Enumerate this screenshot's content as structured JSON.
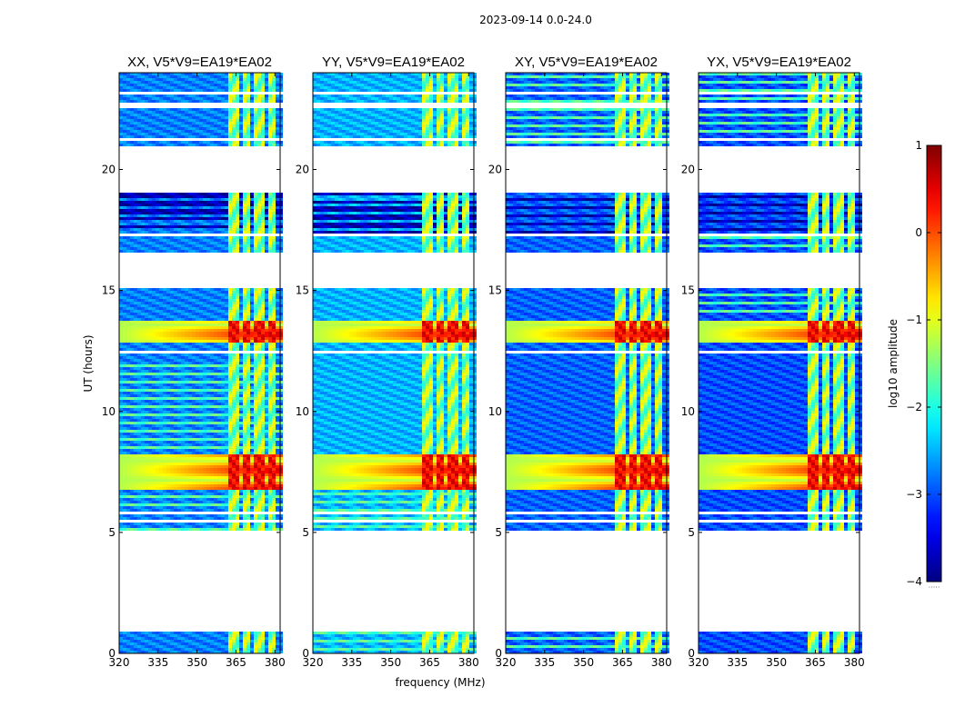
{
  "chart_data": {
    "type": "heatmap",
    "suptitle": "2023-09-14 0.0-24.0",
    "xlabel": "frequency (MHz)",
    "ylabel": "UT (hours)",
    "xlim": [
      320,
      382
    ],
    "ylim": [
      0,
      24
    ],
    "xticks": [
      "320",
      "335",
      "350",
      "365",
      "380"
    ],
    "yticks": [
      "0",
      "5",
      "10",
      "15",
      "20"
    ],
    "panels": [
      {
        "name": "XX",
        "title": "XX, V5*V9=EA19*EA02",
        "base_level": 0.25
      },
      {
        "name": "YY",
        "title": "YY, V5*V9=EA19*EA02",
        "base_level": 0.3
      },
      {
        "name": "XY",
        "title": "XY, V5*V9=EA19*EA02",
        "base_level": 0.22
      },
      {
        "name": "YX",
        "title": "YX, V5*V9=EA19*EA02",
        "base_level": 0.2
      }
    ],
    "colorbar": {
      "label": "log10 amplitude",
      "range": [
        -4,
        1
      ],
      "ticks": [
        "1",
        "0",
        "−1",
        "−2",
        "−3",
        "−4"
      ],
      "colormap": "jet",
      "extension_label": "·····"
    },
    "data_gaps_hours": [
      [
        0.85,
        5.1
      ],
      [
        5.45,
        5.55
      ],
      [
        5.75,
        5.85
      ],
      [
        9.0,
        9.05
      ],
      [
        12.15,
        12.2
      ],
      [
        12.45,
        12.55
      ],
      [
        15.1,
        16.4
      ],
      [
        16.5,
        16.55
      ],
      [
        16.85,
        16.95
      ],
      [
        17.2,
        17.35
      ],
      [
        19.0,
        21.0
      ],
      [
        21.15,
        21.3
      ],
      [
        22.5,
        22.75
      ],
      [
        23.15,
        23.25
      ]
    ],
    "rfi_channels_mhz": [
      [
        362,
        366
      ],
      [
        367,
        371
      ],
      [
        372,
        376
      ],
      [
        377,
        380
      ]
    ],
    "strong_interference_hours": [
      [
        6.75,
        8.25
      ],
      [
        12.8,
        13.7
      ]
    ]
  }
}
